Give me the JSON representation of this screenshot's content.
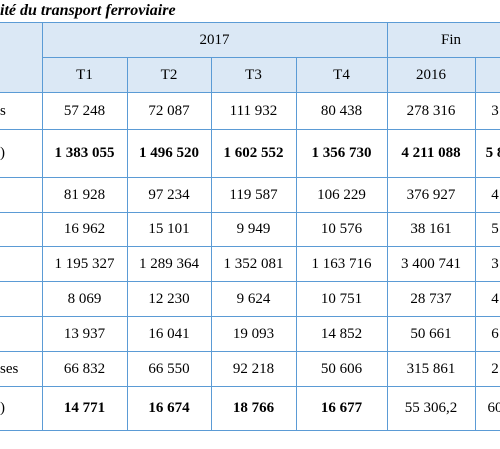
{
  "title": "ité du transport ferroviaire",
  "header": {
    "group_2017": "2017",
    "group_fin": "Fin",
    "quarters": [
      "T1",
      "T2",
      "T3",
      "T4"
    ],
    "year": "2016"
  },
  "rows": [
    {
      "label": "s",
      "cells": [
        "57 248",
        "72 087",
        "111 932",
        "80 438",
        "278 316",
        "3"
      ],
      "bold": false
    },
    {
      "label": ")",
      "cells": [
        "1 383 055",
        "1 496 520",
        "1 602 552",
        "1 356 730",
        "4 211 088",
        "5 8"
      ],
      "bold": true
    },
    {
      "cells": [
        "81 928",
        "97 234",
        "119 587",
        "106 229",
        "376 927",
        "4"
      ],
      "bold": false
    },
    {
      "cells": [
        "16 962",
        "15 101",
        "9 949",
        "10 576",
        "38 161",
        "5"
      ],
      "bold": false
    },
    {
      "cells": [
        "1 195 327",
        "1 289 364",
        "1 352 081",
        "1 163 716",
        "3 400 741",
        "3"
      ],
      "bold": false
    },
    {
      "cells": [
        "8 069",
        "12 230",
        "9 624",
        "10 751",
        "28 737",
        "4"
      ],
      "bold": false
    },
    {
      "cells": [
        "13 937",
        "16 041",
        "19 093",
        "14 852",
        "50 661",
        "6"
      ],
      "bold": false
    },
    {
      "label": "ses",
      "cells": [
        "66 832",
        "66 550",
        "92 218",
        "50 606",
        "315 861",
        "2"
      ],
      "bold": false
    },
    {
      "label": ")",
      "cells": [
        "14 771",
        "16 674",
        "18 766",
        "16 677",
        "55 306,2",
        "60"
      ],
      "bold": [
        true,
        true,
        true,
        true,
        false,
        false
      ]
    }
  ]
}
